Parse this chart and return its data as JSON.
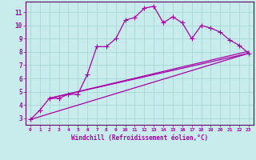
{
  "xlabel": "Windchill (Refroidissement éolien,°C)",
  "bg_color": "#c8ecec",
  "grid_color": "#a8d8d8",
  "line_color": "#aa00aa",
  "spine_color": "#660066",
  "xlim": [
    -0.5,
    23.5
  ],
  "ylim": [
    2.5,
    11.8
  ],
  "xticks": [
    0,
    1,
    2,
    3,
    4,
    5,
    6,
    7,
    8,
    9,
    10,
    11,
    12,
    13,
    14,
    15,
    16,
    17,
    18,
    19,
    20,
    21,
    22,
    23
  ],
  "yticks": [
    3,
    4,
    5,
    6,
    7,
    8,
    9,
    10,
    11
  ],
  "series1_x": [
    0,
    1,
    2,
    3,
    4,
    5,
    6,
    7,
    8,
    9,
    10,
    11,
    12,
    13,
    14,
    15,
    16,
    17,
    18,
    19,
    20,
    21,
    22,
    23
  ],
  "series1_y": [
    2.9,
    3.6,
    4.5,
    4.5,
    4.8,
    4.8,
    6.3,
    8.4,
    8.4,
    9.0,
    10.4,
    10.6,
    11.3,
    11.45,
    10.2,
    10.65,
    10.2,
    9.0,
    10.0,
    9.8,
    9.5,
    8.9,
    8.5,
    7.9
  ],
  "line2_x": [
    0,
    23
  ],
  "line2_y": [
    2.9,
    7.9
  ],
  "line3_x": [
    2,
    23
  ],
  "line3_y": [
    4.5,
    7.9
  ],
  "line4_x": [
    2,
    23
  ],
  "line4_y": [
    4.5,
    8.05
  ],
  "marker": "+",
  "markersize": 4,
  "linewidth": 0.9
}
